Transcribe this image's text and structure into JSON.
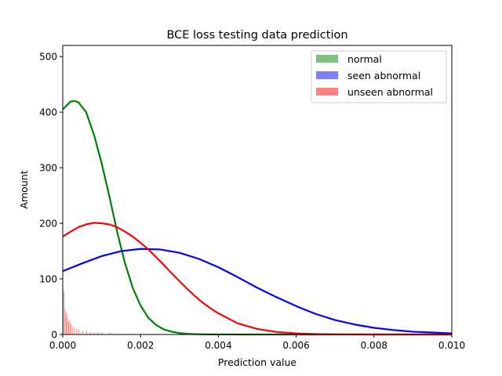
{
  "chart_data": {
    "type": "line",
    "title": "BCE loss testing data prediction",
    "xlabel": "Prediction value",
    "ylabel": "Amount",
    "xlim": [
      0,
      0.01
    ],
    "ylim": [
      0,
      520
    ],
    "xticks": [
      0,
      0.002,
      0.004,
      0.006,
      0.008,
      0.01
    ],
    "xtick_labels": [
      "0.000",
      "0.002",
      "0.004",
      "0.006",
      "0.008",
      "0.010"
    ],
    "yticks": [
      0,
      100,
      200,
      300,
      400,
      500
    ],
    "ytick_labels": [
      "0",
      "100",
      "200",
      "300",
      "400",
      "500"
    ],
    "grid": false,
    "legend_position": "top-right",
    "series": [
      {
        "name": "normal",
        "color": "#008000",
        "legend_color": "#80c080",
        "x": [
          0,
          0.0002,
          0.0003,
          0.0004,
          0.0006,
          0.0008,
          0.001,
          0.0012,
          0.0014,
          0.0016,
          0.0018,
          0.002,
          0.0022,
          0.0024,
          0.0026,
          0.0028,
          0.003,
          0.0032,
          0.0034,
          0.0036,
          0.0038,
          0.004,
          0.0045,
          0.005,
          0.006,
          0.008,
          0.01
        ],
        "y": [
          405,
          419,
          420,
          418,
          400,
          360,
          308,
          248,
          184,
          128,
          84,
          52,
          30,
          17,
          9,
          5,
          2.5,
          1.2,
          0.6,
          0.3,
          0.15,
          0.05,
          0,
          0,
          0,
          0,
          0
        ]
      },
      {
        "name": "seen abnormal",
        "color": "#0000ff",
        "legend_color": "#8080ff",
        "x": [
          0,
          0.0005,
          0.001,
          0.0015,
          0.002,
          0.0025,
          0.003,
          0.0035,
          0.004,
          0.0045,
          0.005,
          0.0055,
          0.006,
          0.0065,
          0.007,
          0.0075,
          0.008,
          0.0085,
          0.009,
          0.0095,
          0.01
        ],
        "y": [
          114,
          128,
          141,
          150,
          154,
          153,
          147,
          136,
          121,
          103,
          84,
          67,
          51,
          37,
          26,
          18,
          12,
          8,
          5,
          3.5,
          2
        ]
      },
      {
        "name": "unseen abnormal",
        "color": "#ff0000",
        "legend_color": "#ff8080",
        "x": [
          0,
          0.0002,
          0.0004,
          0.0006,
          0.0008,
          0.001,
          0.0012,
          0.0014,
          0.0016,
          0.0018,
          0.002,
          0.0022,
          0.0024,
          0.0026,
          0.0028,
          0.003,
          0.0032,
          0.0034,
          0.0036,
          0.0038,
          0.004,
          0.0045,
          0.005,
          0.0055,
          0.006,
          0.0065,
          0.007,
          0.0075,
          0.008,
          0.009,
          0.01
        ],
        "y": [
          176,
          185,
          193,
          198,
          201,
          200,
          198,
          193,
          185,
          176,
          165,
          153,
          139,
          125,
          110,
          96,
          82,
          69,
          57,
          47,
          38,
          20,
          10,
          4.5,
          2,
          0.8,
          0.3,
          0.1,
          0,
          0,
          0
        ]
      }
    ],
    "histogram": {
      "series": "unseen abnormal",
      "color": "#ff8080",
      "x": [
        2e-05,
        5e-05,
        8e-05,
        0.00011,
        0.00014,
        0.00017,
        0.0002,
        0.00025,
        0.0003,
        0.00035,
        0.0004,
        0.0005,
        0.0006,
        0.0007,
        0.0008,
        0.0009,
        0.001,
        0.0012,
        0.0014,
        0.0016,
        0.0018,
        0.002,
        0.0023,
        0.0026
      ],
      "y": [
        78,
        46,
        40,
        30,
        22,
        26,
        18,
        14,
        12,
        10,
        9,
        7,
        6,
        5,
        4,
        4,
        3,
        3,
        2,
        2,
        2,
        1.5,
        1,
        1
      ]
    }
  }
}
